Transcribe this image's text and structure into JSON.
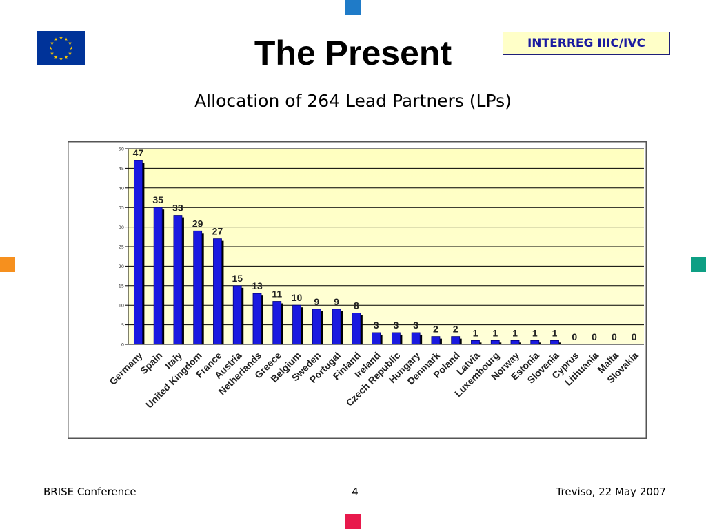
{
  "slide": {
    "title": "The Present",
    "badge": "INTERREG IIIC/IVC",
    "subtitle": "Allocation of 264 Lead Partners (LPs)",
    "footer": {
      "left": "BRISE Conference",
      "page": "4",
      "right": "Treviso, 22 May 2007"
    },
    "colors": {
      "marker_top": "#1f7bc8",
      "marker_left": "#f6901e",
      "marker_right": "#0e9f84",
      "marker_bottom": "#e8194c",
      "eu_blue": "#003399",
      "eu_gold": "#ffcc00"
    },
    "logo": "eu-flag-icon"
  },
  "chart_data": {
    "type": "bar",
    "categories": [
      "Germany",
      "Spain",
      "Italy",
      "United Kingdom",
      "France",
      "Austria",
      "Netherlands",
      "Greece",
      "Belgium",
      "Sweden",
      "Portugal",
      "Finland",
      "Ireland",
      "Czech Republic",
      "Hungary",
      "Denmark",
      "Poland",
      "Latvia",
      "Luxembourg",
      "Norway",
      "Estonia",
      "Slovenia",
      "Cyprus",
      "Lithuania",
      "Malta",
      "Slovakia"
    ],
    "values": [
      47,
      35,
      33,
      29,
      27,
      15,
      13,
      11,
      10,
      9,
      9,
      8,
      3,
      3,
      3,
      2,
      2,
      1,
      1,
      1,
      1,
      1,
      0,
      0,
      0,
      0
    ],
    "data_labels": [
      "47",
      "35",
      "33",
      "29",
      "27",
      "15",
      "13",
      "11",
      "10",
      "9",
      "9",
      "8",
      "3",
      "3",
      "3",
      "2",
      "2",
      "1",
      "1",
      "1",
      "1",
      "1",
      "0",
      "0",
      "0",
      "0"
    ],
    "yticks": [
      "0",
      "5",
      "10",
      "15",
      "20",
      "25",
      "30",
      "35",
      "40",
      "45",
      "50"
    ],
    "ylim": [
      0,
      50
    ],
    "grid": true,
    "bar_color": "#1a1ae0",
    "plot_background": "#ffffd8"
  }
}
